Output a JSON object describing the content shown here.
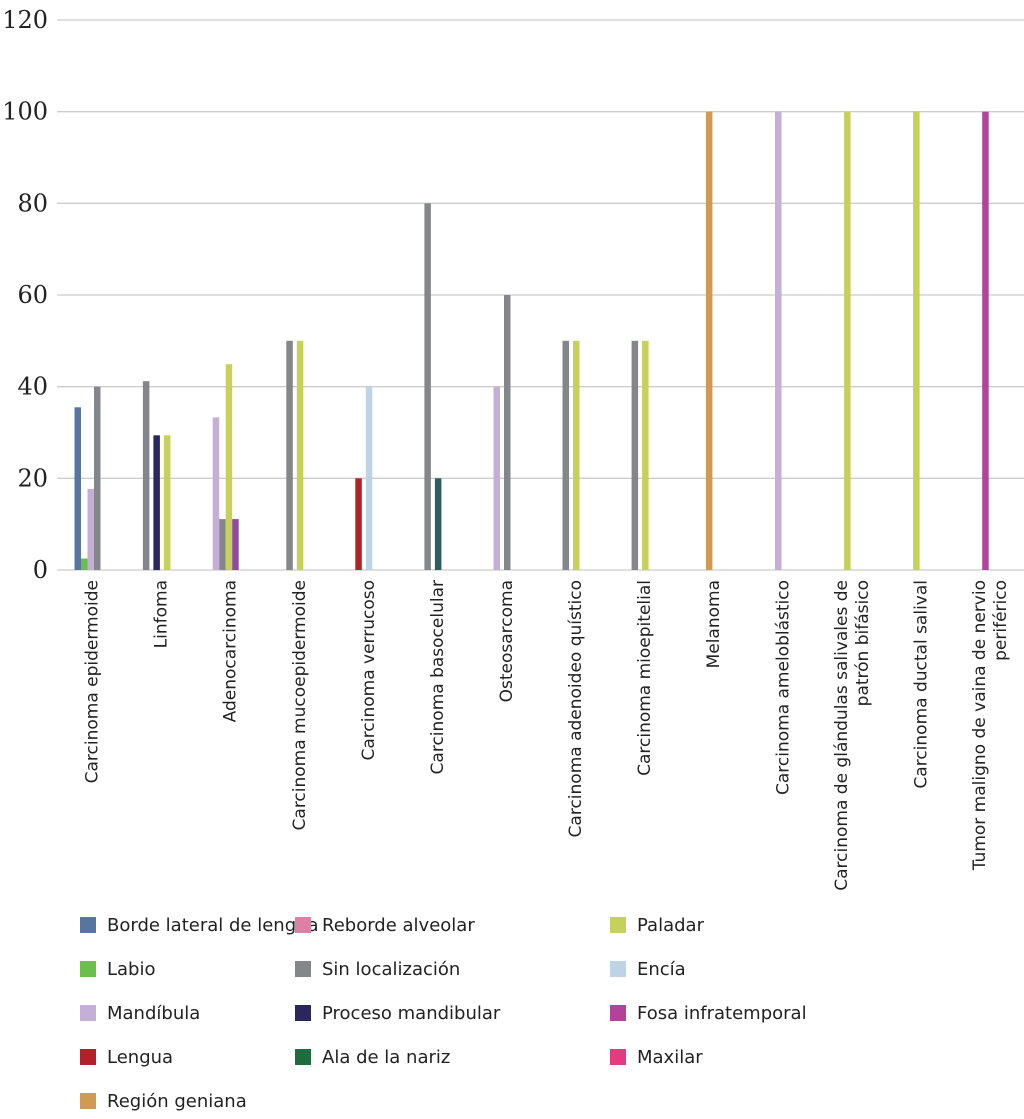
{
  "chart_data": {
    "type": "bar",
    "title": "",
    "xlabel": "",
    "ylabel": "",
    "ylim": [
      0,
      120
    ],
    "yticks": [
      "0",
      "20",
      "40",
      "60",
      "80",
      "100",
      "120"
    ],
    "grid": true,
    "legend_position": "bottom",
    "categories": [
      [
        "Carcinoma epidermoide"
      ],
      [
        "Linfoma"
      ],
      [
        "Adenocarcinoma"
      ],
      [
        "Carcinoma mucoepidermoide"
      ],
      [
        "Carcinoma verrucoso"
      ],
      [
        "Carcinoma basocelular"
      ],
      [
        "Osteosarcoma"
      ],
      [
        "Carcinoma adenoideo quístico"
      ],
      [
        "Carcinoma mioepitelial"
      ],
      [
        "Melanoma"
      ],
      [
        "Carcinoma ameloblástico"
      ],
      [
        "Carcinoma de glándulas salivales de",
        "patrón bifásico"
      ],
      [
        "Carcinoma ductal salival"
      ],
      [
        "Tumor maligno de vaina de nervio",
        "periférico"
      ]
    ],
    "series": [
      {
        "name": "Borde lateral de lengua",
        "color": "#57759f",
        "values": [
          35.5,
          0,
          0,
          0,
          0,
          0,
          0,
          0,
          0,
          0,
          0,
          0,
          0,
          0
        ]
      },
      {
        "name": "Labio",
        "color": "#6cbf4c",
        "values": [
          2.5,
          0,
          0,
          0,
          0,
          0,
          0,
          0,
          0,
          0,
          0,
          0,
          0,
          0
        ]
      },
      {
        "name": "Mandíbula",
        "color": "#c6afd6",
        "values": [
          17.7,
          0,
          33.3,
          0,
          0,
          0,
          40,
          0,
          0,
          0,
          100,
          0,
          0,
          0
        ]
      },
      {
        "name": "Lengua",
        "color": "#b3202b",
        "values": [
          0,
          0,
          0,
          0,
          20,
          0,
          0,
          0,
          0,
          0,
          0,
          0,
          0,
          0
        ]
      },
      {
        "name": "Región geniana",
        "color": "#d09a52",
        "values": [
          0,
          0,
          0,
          0,
          0,
          0,
          0,
          0,
          0,
          100,
          0,
          0,
          0,
          0
        ]
      },
      {
        "name": "Reborde alveolar",
        "color": "#dc80a6",
        "values": [
          0,
          0,
          0,
          0,
          0,
          0,
          0,
          0,
          0,
          0,
          0,
          0,
          0,
          0
        ]
      },
      {
        "name": "Sin localización",
        "color": "#83878c",
        "values": [
          40,
          41.2,
          11.1,
          50,
          0,
          80,
          60,
          50,
          50,
          0,
          0,
          0,
          0,
          0
        ]
      },
      {
        "name": "Proceso mandibular",
        "color": "#28285f",
        "values": [
          0,
          29.4,
          0,
          0,
          0,
          0,
          0,
          0,
          0,
          0,
          0,
          0,
          0,
          0
        ]
      },
      {
        "name": "Ala de la nariz",
        "color": "#1e6b3d",
        "values": [
          0,
          0,
          0,
          0,
          0,
          20,
          0,
          0,
          0,
          0,
          0,
          0,
          0,
          0
        ]
      },
      {
        "name": "Paladar",
        "color": "#c5d15a",
        "values": [
          0,
          29.4,
          44.9,
          50,
          0,
          0,
          0,
          50,
          50,
          0,
          0,
          100,
          100,
          0
        ]
      },
      {
        "name": "Encía",
        "color": "#bdd3e6",
        "values": [
          0,
          0,
          0,
          0,
          40,
          0,
          0,
          0,
          0,
          0,
          0,
          0,
          0,
          0
        ]
      },
      {
        "name": "Fosa infratemporal",
        "color": "#b0449a",
        "values": [
          0,
          0,
          11.1,
          0,
          0,
          0,
          0,
          0,
          0,
          0,
          0,
          0,
          0,
          100
        ]
      },
      {
        "name": "Maxilar",
        "color": "#e53a80",
        "values": [
          0,
          0,
          0,
          0,
          0,
          0,
          0,
          0,
          0,
          0,
          0,
          0,
          0,
          0
        ]
      }
    ],
    "bar_color_overrides": [
      {
        "series": "Ala de la nariz",
        "category_index": 5,
        "color": "#2f5b61"
      },
      {
        "series": "Fosa infratemporal",
        "category_index": 2,
        "color": "#8e4a9e"
      }
    ]
  },
  "legend": {
    "items": [
      {
        "label": "Borde lateral de lengua",
        "color": "#57759f"
      },
      {
        "label": "Labio",
        "color": "#6cbf4c"
      },
      {
        "label": "Mandíbula",
        "color": "#c6afd6"
      },
      {
        "label": "Lengua",
        "color": "#b3202b"
      },
      {
        "label": "Región geniana",
        "color": "#d09a52"
      },
      {
        "label": "Reborde alveolar",
        "color": "#dc80a6"
      },
      {
        "label": "Sin localización",
        "color": "#83878c"
      },
      {
        "label": "Proceso mandibular",
        "color": "#28285f"
      },
      {
        "label": "Ala de la nariz",
        "color": "#1e6b3d"
      },
      {
        "label": "Paladar",
        "color": "#c5d15a"
      },
      {
        "label": "Encía",
        "color": "#bdd3e6"
      },
      {
        "label": "Fosa infratemporal",
        "color": "#b0449a"
      },
      {
        "label": "Maxilar",
        "color": "#e53a80"
      }
    ]
  }
}
